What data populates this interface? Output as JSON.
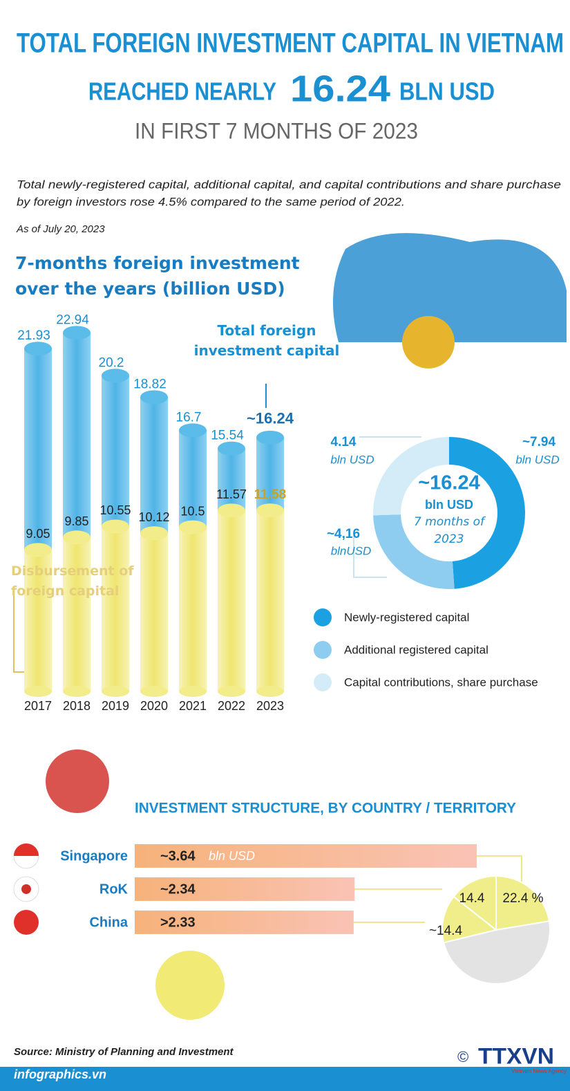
{
  "header": {
    "title_line1": "TOTAL FOREIGN INVESTMENT CAPITAL IN VIETNAM",
    "title_line2_start": "REACHED NEARLY",
    "title_number": "16.24",
    "title_line2_end": "BLN USD",
    "subtitle": "IN FIRST 7 MONTHS OF 2023",
    "description": [
      "Total newly-registered capital, additional capital, and capital contributions and share purchase",
      "by foreign investors rose 4.5% compared to the same period of 2022."
    ],
    "as_of": "As of July 20, 2023"
  },
  "chart_data": [
    {
      "type": "bar",
      "title": "7-months foreign investment over the years (billion USD)",
      "categories": [
        "2017",
        "2018",
        "2019",
        "2020",
        "2021",
        "2022",
        "2023"
      ],
      "ylim": [
        0,
        23
      ],
      "series": [
        {
          "name": "Total foreign investment capital",
          "color": "#5bbce9",
          "values": [
            21.93,
            22.94,
            20.2,
            18.82,
            16.7,
            15.54,
            16.24
          ],
          "value_labels": [
            "21.93",
            "22.94",
            "20.2",
            "18.82",
            "16.7",
            "15.54",
            "~16.24"
          ]
        },
        {
          "name": "Disbursement of foreign capital",
          "color": "#f3ec8a",
          "values": [
            9.05,
            9.85,
            10.55,
            10.12,
            10.5,
            11.57,
            11.58
          ]
        }
      ]
    },
    {
      "type": "donut",
      "center_value": "~16.24",
      "center_unit": "bln USD",
      "center_note": "7 months of 2023",
      "categories": [
        "Newly-registered capital",
        "Additional registered capital",
        "Capital contributions, share purchase"
      ],
      "values": [
        7.94,
        4.16,
        4.14
      ],
      "value_labels": [
        "~7.94",
        "~4,16",
        "4.14"
      ],
      "value_units": [
        "bln USD",
        "blnUSD",
        "bln USD"
      ],
      "colors": [
        "#1ba1e2",
        "#8fcdf0",
        "#d4ebf8"
      ]
    },
    {
      "type": "hbar",
      "title": "INVESTMENT STRUCTURE, BY COUNTRY / TERRITORY",
      "categories": [
        "Singapore",
        "RoK",
        "China"
      ],
      "values": [
        3.64,
        2.34,
        2.33
      ],
      "value_labels": [
        "~3.64",
        "~2.34",
        ">2.33"
      ],
      "unit": "bln USD",
      "xlim": [
        0,
        4
      ],
      "color": "#f7b27a"
    },
    {
      "type": "pie",
      "values": [
        22.4,
        48.8,
        14.4,
        14.4
      ],
      "value_labels": [
        "22.4 %",
        null,
        "~14.4",
        "14.4"
      ],
      "colors": [
        "#efee8a",
        "#e3e3e3",
        "#efee8a",
        "#efee8a"
      ]
    }
  ],
  "footer": {
    "source": "Source: Ministry of Planning and Investment",
    "site": "infographics.vn",
    "copyright": "©",
    "logo": "TTXVN",
    "agency": "Vietnam News Agency"
  }
}
